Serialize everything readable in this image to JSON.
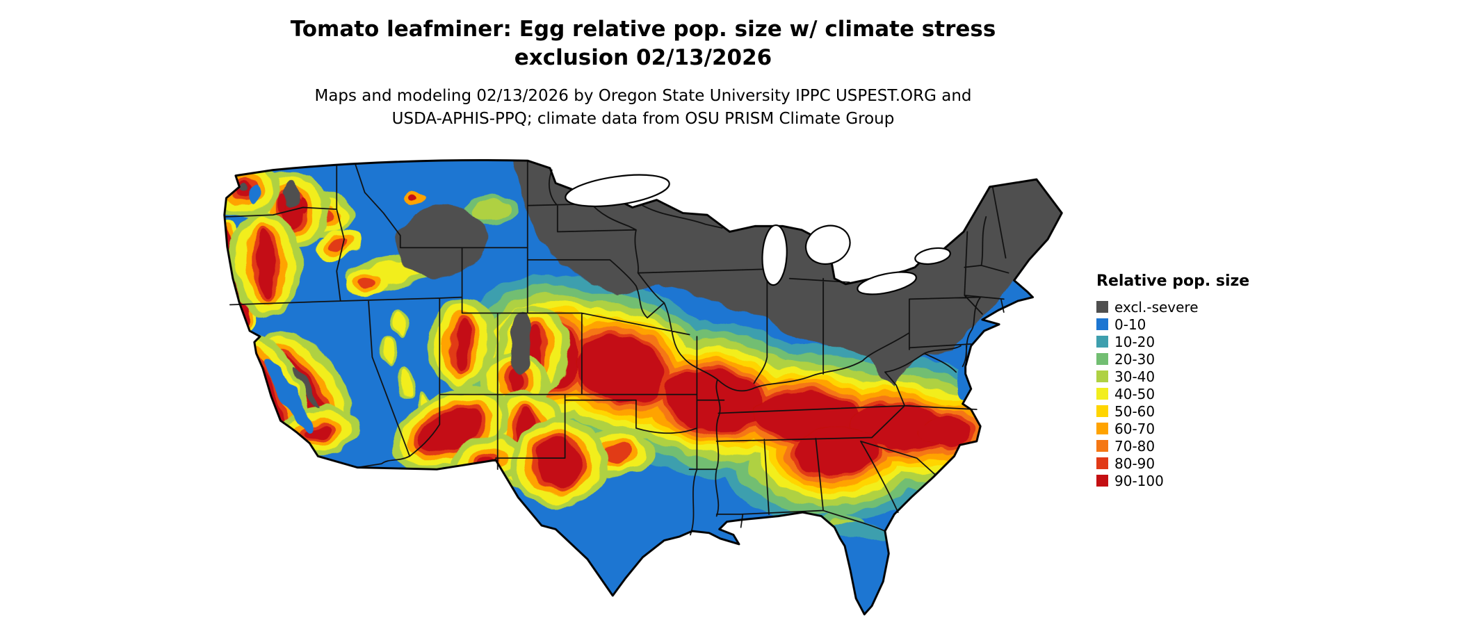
{
  "title": {
    "line1": "Tomato leafminer: Egg relative pop. size w/ climate stress",
    "line2": "exclusion 02/13/2026"
  },
  "subtitle": {
    "line1": "Maps and modeling 02/13/2026 by Oregon State University IPPC USPEST.ORG and",
    "line2": "USDA-APHIS-PPQ; climate data from OSU PRISM Climate Group"
  },
  "legend": {
    "title": "Relative pop. size",
    "entries": [
      {
        "label": "excl.-severe",
        "color": "#4f4f4f"
      },
      {
        "label": "0-10",
        "color": "#1d76d2"
      },
      {
        "label": "10-20",
        "color": "#3e9fae"
      },
      {
        "label": "20-30",
        "color": "#72be72"
      },
      {
        "label": "30-40",
        "color": "#afd143"
      },
      {
        "label": "40-50",
        "color": "#f2ee1d"
      },
      {
        "label": "50-60",
        "color": "#ffd500"
      },
      {
        "label": "60-70",
        "color": "#ffa300"
      },
      {
        "label": "70-80",
        "color": "#f57714"
      },
      {
        "label": "80-90",
        "color": "#e13a17"
      },
      {
        "label": "90-100",
        "color": "#c40f12"
      }
    ]
  }
}
